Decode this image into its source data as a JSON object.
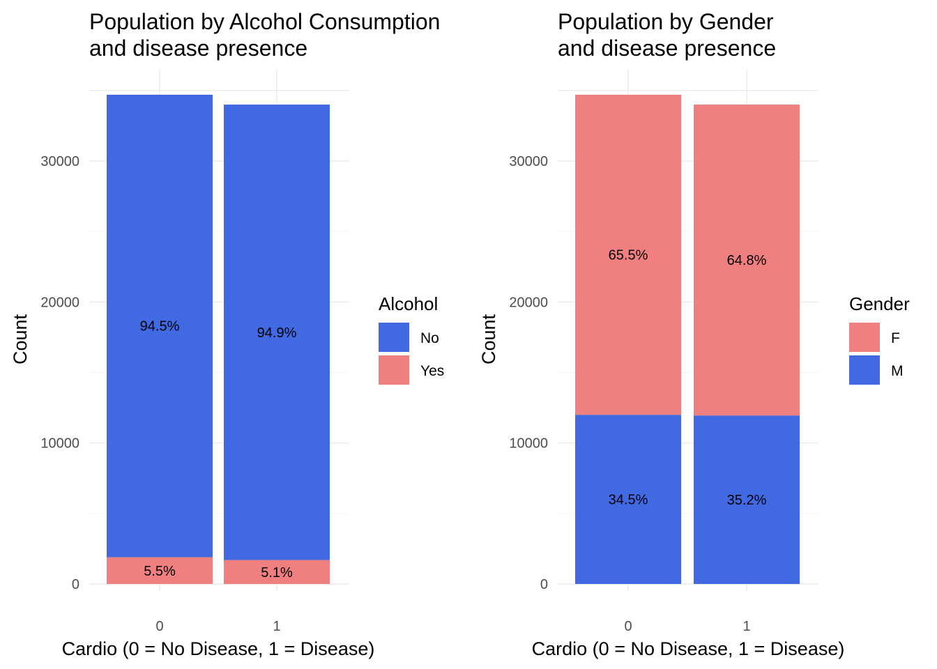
{
  "colors": {
    "No": "#4169E1",
    "Yes": "#F08080",
    "F": "#F08080",
    "M": "#4169E1",
    "grid": "#ebebeb"
  },
  "chart_data": [
    {
      "type": "bar",
      "stacked": true,
      "title": "Population by Alcohol Consumption\nand disease presence",
      "xlabel": "Cardio (0 = No Disease, 1 = Disease)",
      "ylabel": "Count",
      "categories": [
        "0",
        "1"
      ],
      "yticks": [
        0,
        10000,
        20000,
        30000
      ],
      "ylim": [
        0,
        35000
      ],
      "legend": {
        "title": "Alcohol",
        "position": "right",
        "entries": [
          "No",
          "Yes"
        ]
      },
      "series": [
        {
          "name": "Yes",
          "color": "#F08080",
          "values": [
            1900,
            1700
          ],
          "labels": [
            "5.5%",
            "5.1%"
          ]
        },
        {
          "name": "No",
          "color": "#4169E1",
          "values": [
            32800,
            32300
          ],
          "labels": [
            "94.5%",
            "94.9%"
          ]
        }
      ],
      "grid": true
    },
    {
      "type": "bar",
      "stacked": true,
      "title": "Population by Gender\nand disease presence",
      "xlabel": "Cardio (0 = No Disease, 1 = Disease)",
      "ylabel": "Count",
      "categories": [
        "0",
        "1"
      ],
      "yticks": [
        0,
        10000,
        20000,
        30000
      ],
      "ylim": [
        0,
        35000
      ],
      "legend": {
        "title": "Gender",
        "position": "right",
        "entries": [
          "F",
          "M"
        ]
      },
      "series": [
        {
          "name": "M",
          "color": "#4169E1",
          "values": [
            12000,
            11950
          ],
          "labels": [
            "34.5%",
            "35.2%"
          ]
        },
        {
          "name": "F",
          "color": "#F08080",
          "values": [
            22700,
            22050
          ],
          "labels": [
            "65.5%",
            "64.8%"
          ]
        }
      ],
      "grid": true
    }
  ]
}
